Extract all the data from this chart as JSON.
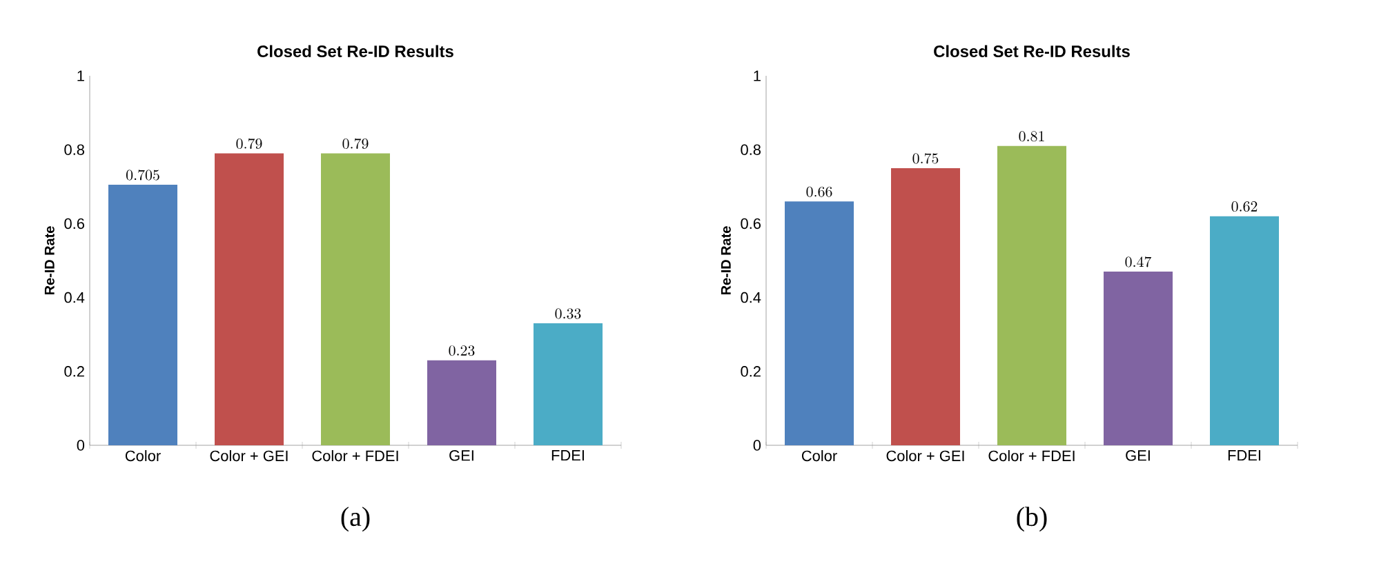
{
  "chart_data": [
    {
      "type": "bar",
      "title": "Closed Set Re-ID Results",
      "ylabel": "Re-ID Rate",
      "categories": [
        "Color",
        "Color + GEI",
        "Color + FDEI",
        "GEI",
        "FDEI"
      ],
      "values": [
        0.705,
        0.79,
        0.79,
        0.23,
        0.33
      ],
      "colors": [
        "#4f81bd",
        "#c0504d",
        "#9bbb59",
        "#8064a2",
        "#4bacc6"
      ],
      "ylim": [
        0,
        1
      ],
      "yticks": [
        0,
        0.2,
        0.4,
        0.6,
        0.8,
        1
      ],
      "grid": false,
      "data_labels": true,
      "annotations": [
        "(a)"
      ]
    },
    {
      "type": "bar",
      "title": "Closed Set Re-ID Results",
      "ylabel": "Re-ID Rate",
      "categories": [
        "Color",
        "Color + GEI",
        "Color + FDEI",
        "GEI",
        "FDEI"
      ],
      "values": [
        0.66,
        0.75,
        0.81,
        0.47,
        0.62
      ],
      "colors": [
        "#4f81bd",
        "#c0504d",
        "#9bbb59",
        "#8064a2",
        "#4bacc6"
      ],
      "ylim": [
        0,
        1
      ],
      "yticks": [
        0,
        0.2,
        0.4,
        0.6,
        0.8,
        1
      ],
      "grid": false,
      "data_labels": true,
      "annotations": [
        "(b)"
      ]
    }
  ]
}
